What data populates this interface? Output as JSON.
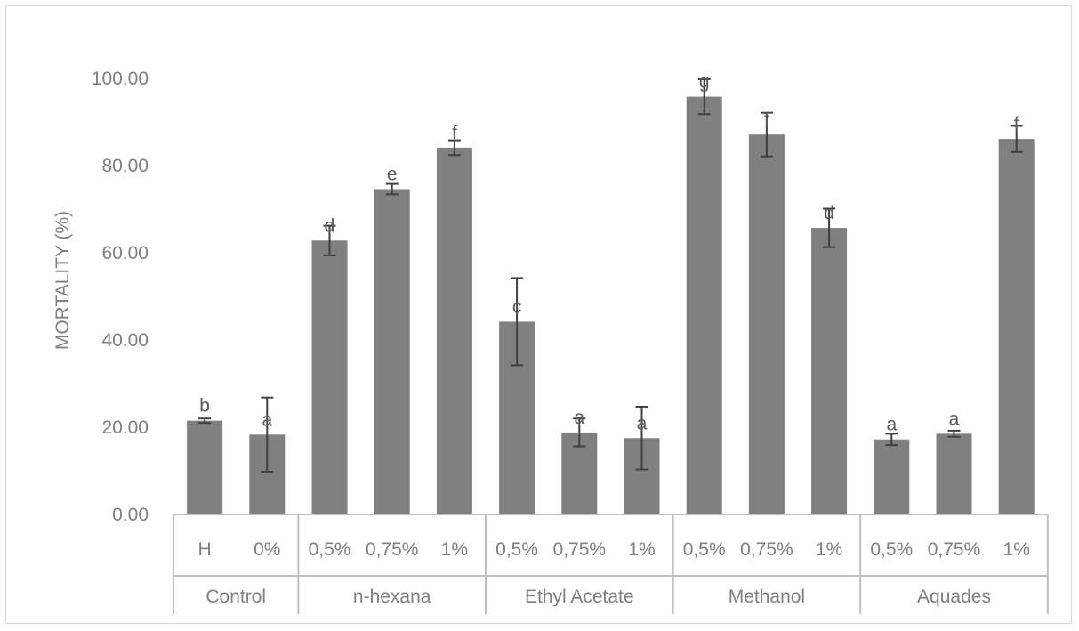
{
  "chart_data": {
    "type": "bar",
    "title": "",
    "ylabel": "MORTALITY (%)",
    "xlabel": "",
    "ylim": [
      0,
      100
    ],
    "y_ticks": [
      "0.00",
      "20.00",
      "40.00",
      "60.00",
      "80.00",
      "100.00"
    ],
    "grid": false,
    "legend": "none",
    "bar_color": "#808080",
    "groups": [
      {
        "name": "Control",
        "categories": [
          "H",
          "0%"
        ],
        "values": [
          21.5,
          18.3
        ],
        "errors": [
          0.5,
          8.5
        ],
        "letters": [
          "b",
          "a"
        ]
      },
      {
        "name": "n-hexana",
        "categories": [
          "0,5%",
          "0,75%",
          "1%"
        ],
        "values": [
          62.8,
          74.6,
          84.1
        ],
        "errors": [
          3.4,
          1.2,
          1.7
        ],
        "letters": [
          "d",
          "e",
          "f"
        ]
      },
      {
        "name": "Ethyl Acetate",
        "categories": [
          "0,5%",
          "0,75%",
          "1%"
        ],
        "values": [
          44.2,
          18.8,
          17.5
        ],
        "errors": [
          10.0,
          3.2,
          7.2
        ],
        "letters": [
          "c",
          "a",
          "a"
        ]
      },
      {
        "name": "Methanol",
        "categories": [
          "0,5%",
          "0,75%",
          "1%"
        ],
        "values": [
          95.8,
          87.1,
          65.7
        ],
        "errors": [
          4.0,
          5.0,
          4.4
        ],
        "letters": [
          "g",
          "f",
          "d"
        ]
      },
      {
        "name": "Aquades",
        "categories": [
          "0,5%",
          "0,75%",
          "1%"
        ],
        "values": [
          17.2,
          18.5,
          86.1
        ],
        "errors": [
          1.3,
          0.7,
          3.0
        ],
        "letters": [
          "a",
          "a",
          "f"
        ]
      }
    ]
  }
}
